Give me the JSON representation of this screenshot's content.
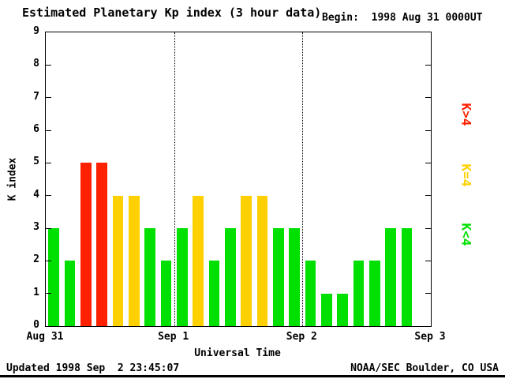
{
  "title": "Estimated Planetary Kp index (3 hour data)",
  "begin_label": "Begin:  1998 Aug 31 0000UT",
  "axis": {
    "y_title": "K index",
    "x_title": "Universal Time"
  },
  "footer": {
    "updated": "Updated 1998 Sep  2 23:45:07",
    "source": "NOAA/SEC Boulder, CO USA"
  },
  "colors": {
    "lt4": "#00e000",
    "eq4": "#ffd000",
    "gt4": "#ff2000"
  },
  "legend": [
    {
      "label": "K>4",
      "color_key": "gt4"
    },
    {
      "label": "K=4",
      "color_key": "eq4"
    },
    {
      "label": "K<4",
      "color_key": "lt4"
    }
  ],
  "chart_data": {
    "type": "bar",
    "title": "Estimated Planetary Kp index (3 hour data)",
    "xlabel": "Universal Time",
    "ylabel": "K index",
    "ylim": [
      0,
      9
    ],
    "yticks": [
      0,
      1,
      2,
      3,
      4,
      5,
      6,
      7,
      8,
      9
    ],
    "x_day_labels": [
      "Aug 31",
      "Sep 1",
      "Sep 2",
      "Sep 3"
    ],
    "begin": "1998 Aug 31 0000UT",
    "days": 3,
    "slots_per_day": 8,
    "hours_per_slot": 3,
    "values": [
      3,
      2,
      5,
      5,
      4,
      4,
      3,
      2,
      3,
      4,
      2,
      3,
      4,
      4,
      3,
      3,
      2,
      1,
      1,
      2,
      2,
      3,
      3
    ],
    "color_rule": {
      "lt4": "green",
      "eq4": "yellow",
      "gt4": "red"
    },
    "grid": "dotted vertical lines at day boundaries",
    "legend_position": "right"
  }
}
